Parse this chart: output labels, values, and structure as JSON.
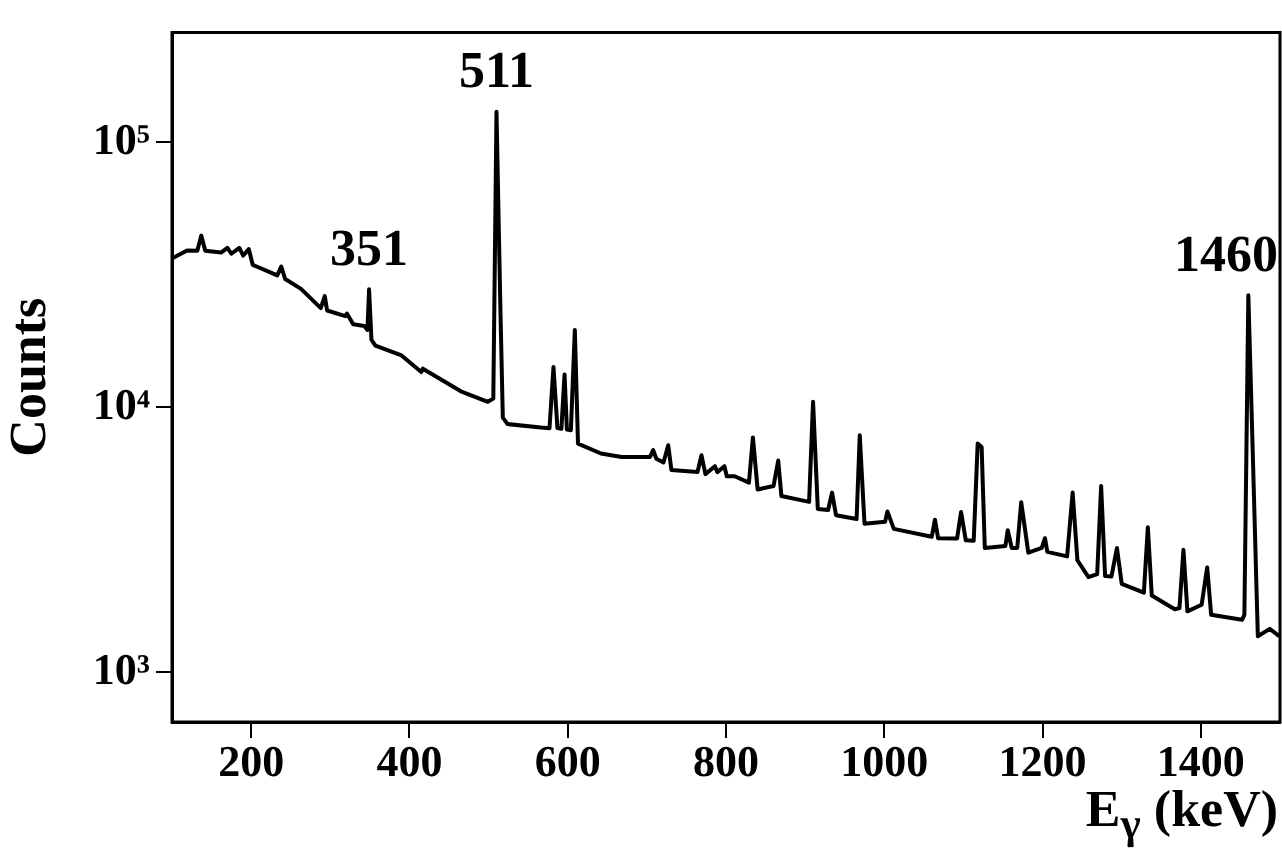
{
  "chart_data": {
    "type": "line",
    "xlabel": "E$_{γ}$ (keV)",
    "ylabel": "Counts",
    "log": "y",
    "grid": false,
    "legend": false,
    "marker": "none",
    "line_style": "solid",
    "xlim": [
      100,
      1500
    ],
    "xticks": [
      200,
      400,
      600,
      800,
      1000,
      1200,
      1400
    ],
    "ylim": [
      650,
      260000
    ],
    "yticks": [
      {
        "value": 1000,
        "label": "10³"
      },
      {
        "value": 10000,
        "label": "10⁴"
      },
      {
        "value": 100000,
        "label": "10⁵"
      }
    ],
    "annotations": [
      {
        "text": "351",
        "x": 349,
        "y": 27900
      },
      {
        "text": "511",
        "x": 510,
        "y": 130600
      },
      {
        "text": "1460",
        "x": 1460,
        "y": 26500
      }
    ],
    "series": [
      {
        "color": "#000000",
        "x": [
          101,
          119,
          132,
          137,
          142,
          162,
          170,
          175,
          185,
          190,
          197,
          202,
          233,
          238,
          243,
          263,
          288,
          293,
          296,
          319,
          321,
          329,
          343,
          347,
          349,
          352,
          357,
          390,
          415,
          417,
          465,
          499,
          506,
          510,
          515,
          518,
          524,
          566,
          577,
          582,
          587,
          592,
          596,
          599,
          604,
          609,
          613,
          642,
          668,
          704,
          708,
          712,
          721,
          727,
          731,
          764,
          769,
          774,
          786,
          789,
          798,
          801,
          811,
          829,
          834,
          840,
          860,
          866,
          870,
          905,
          910,
          916,
          929,
          934,
          939,
          965,
          969,
          975,
          1001,
          1004,
          1012,
          1060,
          1064,
          1068,
          1092,
          1097,
          1103,
          1113,
          1118,
          1123,
          1127,
          1153,
          1156,
          1161,
          1168,
          1173,
          1182,
          1199,
          1203,
          1206,
          1231,
          1238,
          1244,
          1258,
          1269,
          1274,
          1279,
          1287,
          1294,
          1300,
          1328,
          1333,
          1338,
          1367,
          1373,
          1378,
          1383,
          1401,
          1408,
          1413,
          1452,
          1455,
          1460,
          1464,
          1472,
          1487,
          1499
        ],
        "values": [
          36600,
          39100,
          39000,
          44500,
          39000,
          38400,
          40000,
          38000,
          40000,
          37400,
          39600,
          34500,
          31500,
          34000,
          30500,
          28000,
          23700,
          26300,
          23200,
          22100,
          22600,
          20600,
          20300,
          19600,
          27900,
          18000,
          17100,
          15700,
          13600,
          14000,
          11500,
          10500,
          10800,
          130600,
          23200,
          9150,
          8650,
          8400,
          8350,
          14200,
          8350,
          8300,
          13300,
          8250,
          8200,
          19600,
          7300,
          6700,
          6500,
          6500,
          6900,
          6400,
          6200,
          7200,
          5800,
          5700,
          6600,
          5600,
          6000,
          5700,
          6000,
          5500,
          5500,
          5200,
          7700,
          4900,
          5050,
          6300,
          4630,
          4400,
          10500,
          4140,
          4100,
          4770,
          3920,
          3790,
          7850,
          3640,
          3700,
          4050,
          3480,
          3250,
          3770,
          3210,
          3200,
          4030,
          3150,
          3140,
          7300,
          7090,
          2950,
          3000,
          3440,
          2950,
          2950,
          4390,
          2830,
          2950,
          3210,
          2850,
          2740,
          4770,
          2650,
          2290,
          2350,
          5050,
          2310,
          2300,
          2950,
          2160,
          2000,
          3530,
          1950,
          1730,
          1750,
          2900,
          1700,
          1800,
          2490,
          1650,
          1580,
          1650,
          26500,
          9950,
          1370,
          1460,
          1370
        ]
      }
    ]
  }
}
